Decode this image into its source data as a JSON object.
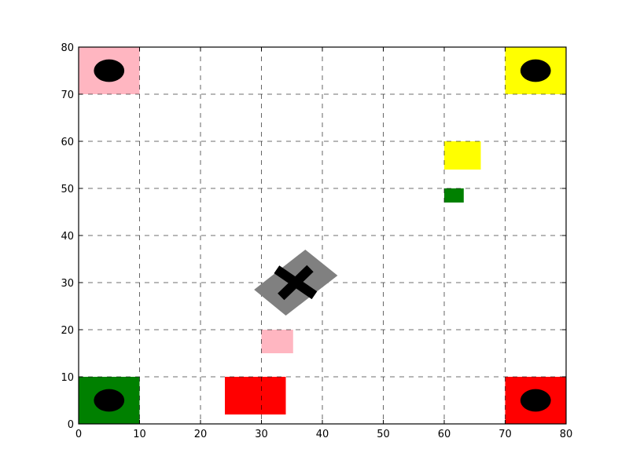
{
  "chart_data": {
    "type": "scatter",
    "title": "",
    "xlabel": "",
    "ylabel": "",
    "xlim": [
      0,
      80
    ],
    "ylim": [
      0,
      80
    ],
    "xticks": [
      0,
      10,
      20,
      30,
      40,
      50,
      60,
      70,
      80
    ],
    "yticks": [
      0,
      10,
      20,
      30,
      40,
      50,
      60,
      70,
      80
    ],
    "grid": true,
    "grid_style": "dashed",
    "corner_zones": [
      {
        "name": "pink-zone",
        "color": "#ffb6c1",
        "x0": 0,
        "y0": 70,
        "x1": 10,
        "y1": 80,
        "marker_cx": 5,
        "marker_cy": 75,
        "marker_w": 5,
        "marker_h": 4.8
      },
      {
        "name": "yellow-zone",
        "color": "#ffff00",
        "x0": 70,
        "y0": 70,
        "x1": 80,
        "y1": 80,
        "marker_cx": 75,
        "marker_cy": 75,
        "marker_w": 5,
        "marker_h": 4.8
      },
      {
        "name": "green-zone",
        "color": "#008000",
        "x0": 0,
        "y0": 0,
        "x1": 10,
        "y1": 10,
        "marker_cx": 5,
        "marker_cy": 5,
        "marker_w": 5,
        "marker_h": 4.8
      },
      {
        "name": "red-zone",
        "color": "#ff0000",
        "x0": 70,
        "y0": 0,
        "x1": 80,
        "y1": 10,
        "marker_cx": 75,
        "marker_cy": 5,
        "marker_w": 5,
        "marker_h": 4.8
      }
    ],
    "blocks": [
      {
        "name": "yellow-block",
        "color": "#ffff00",
        "x0": 60,
        "y0": 54,
        "x1": 66,
        "y1": 60
      },
      {
        "name": "green-block",
        "color": "#008000",
        "x0": 60,
        "y0": 47,
        "x1": 63.2,
        "y1": 50
      },
      {
        "name": "pink-block",
        "color": "#ffb6c1",
        "x0": 30,
        "y0": 15,
        "x1": 35.2,
        "y1": 20
      },
      {
        "name": "red-block",
        "color": "#ff0000",
        "x0": 24,
        "y0": 2,
        "x1": 34,
        "y1": 10
      }
    ],
    "robot": {
      "color": "#808080",
      "cross_color": "#000000",
      "center": [
        35.5,
        30
      ],
      "vertices": [
        [
          28.8,
          28.5
        ],
        [
          37.2,
          37
        ],
        [
          42.5,
          31.5
        ],
        [
          34,
          23
        ]
      ],
      "cross_a": [
        [
          32.5,
          32.8
        ],
        [
          38.7,
          27.3
        ]
      ],
      "cross_b": [
        [
          33.2,
          27
        ],
        [
          38,
          33
        ]
      ]
    }
  }
}
